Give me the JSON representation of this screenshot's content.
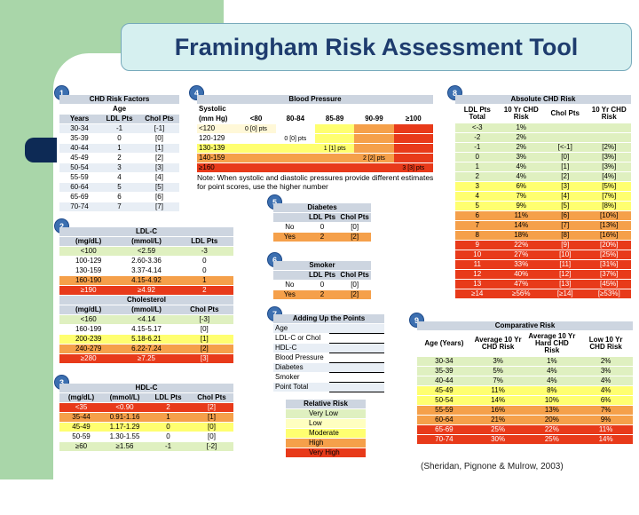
{
  "title": "Framingham Risk Assessment Tool",
  "citation": "(Sheridan, Pignone & Mulrow, 2003)",
  "s1": {
    "num": "1",
    "title": "CHD Risk Factors",
    "sub": "Age",
    "cols": [
      "Years",
      "LDL Pts",
      "Chol Pts"
    ],
    "rows": [
      [
        "30-34",
        "-1",
        "[-1]"
      ],
      [
        "35-39",
        "0",
        "[0]"
      ],
      [
        "40-44",
        "1",
        "[1]"
      ],
      [
        "45-49",
        "2",
        "[2]"
      ],
      [
        "50-54",
        "3",
        "[3]"
      ],
      [
        "55-59",
        "4",
        "[4]"
      ],
      [
        "60-64",
        "5",
        "[5]"
      ],
      [
        "65-69",
        "6",
        "[6]"
      ],
      [
        "70-74",
        "7",
        "[7]"
      ]
    ]
  },
  "s4": {
    "num": "4",
    "title": "Blood Pressure",
    "label1": "Systolic",
    "label2": "(mm Hg)",
    "dcols": [
      "<80",
      "80-84",
      "85-89",
      "90-99",
      "≥100"
    ],
    "rows": [
      "<120",
      "120-129",
      "130-139",
      "140-159",
      "≥160"
    ],
    "pts": {
      "r0": "0 [0] pts",
      "r1": "0 [0] pts",
      "r2": "1 [1] pts",
      "r3": "2 [2] pts",
      "r4": "3 [3] pts"
    },
    "note": "Note: When systolic and diastolic pressures provide different estimates for point scores, use the higher number"
  },
  "s2": {
    "num": "2",
    "title": "LDL-C",
    "cols": [
      "(mg/dL)",
      "(mmol/L)",
      "LDL Pts"
    ],
    "rows": [
      [
        "<100",
        "<2.59",
        "-3"
      ],
      [
        "100-129",
        "2.60-3.36",
        "0"
      ],
      [
        "130-159",
        "3.37-4.14",
        "0"
      ],
      [
        "160-190",
        "4.15-4.92",
        "1"
      ],
      [
        "≥190",
        "≥4.92",
        "2"
      ]
    ],
    "title2": "Cholesterol",
    "cols2": [
      "(mg/dL)",
      "(mmol/L)",
      "Chol Pts"
    ],
    "rows2": [
      [
        "<160",
        "<4.14",
        "[-3]"
      ],
      [
        "160-199",
        "4.15-5.17",
        "[0]"
      ],
      [
        "200-239",
        "5.18-6.21",
        "[1]"
      ],
      [
        "240-279",
        "6.22-7.24",
        "[2]"
      ],
      [
        "≥280",
        "≥7.25",
        "[3]"
      ]
    ]
  },
  "s3": {
    "num": "3",
    "title": "HDL-C",
    "cols": [
      "(mg/dL)",
      "(mmol/L)",
      "LDL Pts",
      "Chol Pts"
    ],
    "rows": [
      [
        "<35",
        "<0.90",
        "2",
        "[2]"
      ],
      [
        "35-44",
        "0.91-1.16",
        "1",
        "[1]"
      ],
      [
        "45-49",
        "1.17-1.29",
        "0",
        "[0]"
      ],
      [
        "50-59",
        "1.30-1.55",
        "0",
        "[0]"
      ],
      [
        "≥60",
        "≥1.56",
        "-1",
        "[-2]"
      ]
    ]
  },
  "s5": {
    "num": "5",
    "title": "Diabetes",
    "cols": [
      "",
      "LDL Pts",
      "Chol Pts"
    ],
    "rows": [
      [
        "No",
        "0",
        "[0]"
      ],
      [
        "Yes",
        "2",
        "[2]"
      ]
    ]
  },
  "s6": {
    "num": "6",
    "title": "Smoker",
    "cols": [
      "",
      "LDL Pts",
      "Chol Pts"
    ],
    "rows": [
      [
        "No",
        "0",
        "[0]"
      ],
      [
        "Yes",
        "2",
        "[2]"
      ]
    ]
  },
  "s7": {
    "num": "7",
    "title": "Adding Up the Points",
    "rows": [
      "Age",
      "LDL-C or Chol",
      "HDL-C",
      "Blood Pressure",
      "Diabetes",
      "Smoker",
      "Point Total"
    ]
  },
  "rr": {
    "title": "Relative Risk",
    "rows": [
      "Very Low",
      "Low",
      "Moderate",
      "High",
      "Very High"
    ]
  },
  "s8": {
    "num": "8",
    "title": "Absolute CHD Risk",
    "cols": [
      "LDL Pts Total",
      "10 Yr CHD Risk",
      "Chol Pts",
      "10 Yr CHD Risk"
    ],
    "rows": [
      [
        "<-3",
        "1%",
        "",
        ""
      ],
      [
        "-2",
        "2%",
        "",
        ""
      ],
      [
        "-1",
        "2%",
        "[<-1]",
        "[2%]"
      ],
      [
        "0",
        "3%",
        "[0]",
        "[3%]"
      ],
      [
        "1",
        "4%",
        "[1]",
        "[3%]"
      ],
      [
        "2",
        "4%",
        "[2]",
        "[4%]"
      ],
      [
        "3",
        "6%",
        "[3]",
        "[5%]"
      ],
      [
        "4",
        "7%",
        "[4]",
        "[7%]"
      ],
      [
        "5",
        "9%",
        "[5]",
        "[8%]"
      ],
      [
        "6",
        "11%",
        "[6]",
        "[10%]"
      ],
      [
        "7",
        "14%",
        "[7]",
        "[13%]"
      ],
      [
        "8",
        "18%",
        "[8]",
        "[16%]"
      ],
      [
        "9",
        "22%",
        "[9]",
        "[20%]"
      ],
      [
        "10",
        "27%",
        "[10]",
        "[25%]"
      ],
      [
        "11",
        "33%",
        "[11]",
        "[31%]"
      ],
      [
        "12",
        "40%",
        "[12]",
        "[37%]"
      ],
      [
        "13",
        "47%",
        "[13]",
        "[45%]"
      ],
      [
        "≥14",
        "≥56%",
        "[≥14]",
        "[≥53%]"
      ]
    ]
  },
  "s9": {
    "num": "9",
    "title": "Comparative Risk",
    "cols": [
      "Age (Years)",
      "Average 10 Yr CHD Risk",
      "Average 10 Yr Hard CHD Risk",
      "Low 10 Yr CHD Risk"
    ],
    "rows": [
      [
        "30-34",
        "3%",
        "1%",
        "2%"
      ],
      [
        "35-39",
        "5%",
        "4%",
        "3%"
      ],
      [
        "40-44",
        "7%",
        "4%",
        "4%"
      ],
      [
        "45-49",
        "11%",
        "8%",
        "4%"
      ],
      [
        "50-54",
        "14%",
        "10%",
        "6%"
      ],
      [
        "55-59",
        "16%",
        "13%",
        "7%"
      ],
      [
        "60-64",
        "21%",
        "20%",
        "9%"
      ],
      [
        "65-69",
        "25%",
        "22%",
        "11%"
      ],
      [
        "70-74",
        "30%",
        "25%",
        "14%"
      ]
    ]
  }
}
